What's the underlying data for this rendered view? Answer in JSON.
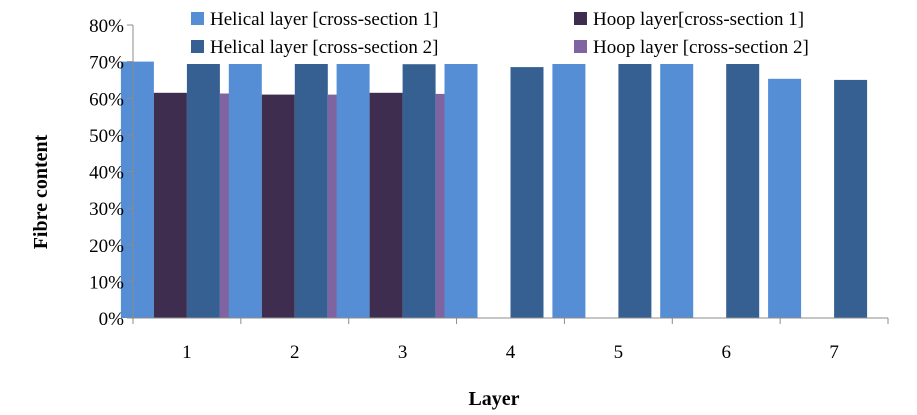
{
  "chart_data": {
    "type": "bar",
    "title": "",
    "xlabel": "Layer",
    "ylabel": "Fibre content",
    "categories": [
      "1",
      "2",
      "3",
      "4",
      "5",
      "6",
      "7"
    ],
    "ylim": [
      0,
      80
    ],
    "yticks": [
      "0%",
      "10%",
      "20%",
      "30%",
      "40%",
      "50%",
      "60%",
      "70%",
      "80%"
    ],
    "series": [
      {
        "name": "Helical layer [cross-section 1]",
        "color": "#558ED5",
        "values": [
          70,
          70,
          70,
          70,
          70,
          70,
          65.3
        ]
      },
      {
        "name": "Hoop layer[cross-section 1]",
        "color": "#3F2D4F",
        "values": [
          61.5,
          61,
          61.5,
          null,
          null,
          null,
          null
        ]
      },
      {
        "name": "Helical layer [cross-section 2]",
        "color": "#366092",
        "values": [
          70,
          70,
          69.3,
          68.5,
          70,
          70,
          65
        ]
      },
      {
        "name": "Hoop layer [cross-section 2]",
        "color": "#8064A2",
        "values": [
          61.3,
          61,
          61.2,
          null,
          null,
          null,
          null
        ]
      }
    ],
    "legend_position": "top",
    "grid": false
  }
}
